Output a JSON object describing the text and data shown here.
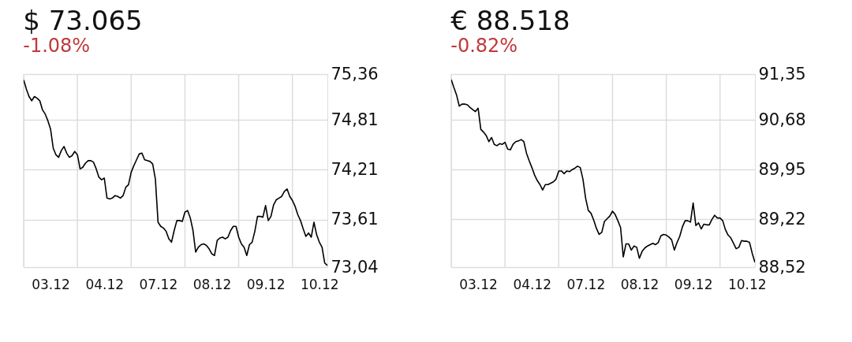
{
  "chart_data": [
    {
      "type": "line",
      "title": "$ 73.065",
      "subtitle": "-1.08%",
      "grid": true,
      "categories": [
        null,
        null,
        null,
        null,
        null,
        null,
        null,
        null,
        null,
        null,
        "03.12",
        null,
        null,
        null,
        null,
        null,
        null,
        null,
        null,
        null,
        null,
        null,
        null,
        null,
        null,
        null,
        null,
        null,
        null,
        null,
        "04.12",
        null,
        null,
        null,
        null,
        null,
        null,
        null,
        null,
        null,
        null,
        null,
        null,
        null,
        null,
        null,
        null,
        null,
        null,
        null,
        "07.12",
        null,
        null,
        null,
        null,
        null,
        null,
        null,
        null,
        null,
        null,
        null,
        null,
        null,
        null,
        null,
        null,
        null,
        null,
        null,
        "08.12",
        null,
        null,
        null,
        null,
        null,
        null,
        null,
        null,
        null,
        null,
        null,
        null,
        null,
        null,
        null,
        null,
        null,
        null,
        null,
        "09.12",
        null,
        null,
        null,
        null,
        null,
        null,
        null,
        null,
        null,
        null,
        null,
        null,
        null,
        null,
        null,
        null,
        null,
        null,
        null,
        "10.12",
        null,
        null,
        null
      ],
      "ylim": [
        73.04,
        75.36
      ],
      "yticks": [
        {
          "value": 75.36,
          "label": "75,36"
        },
        {
          "value": 74.81,
          "label": "74,81"
        },
        {
          "value": 74.21,
          "label": "74,21"
        },
        {
          "value": 73.61,
          "label": "73,61"
        },
        {
          "value": 73.04,
          "label": "73,04"
        }
      ],
      "series": [
        {
          "color": "#000000",
          "values": [
            75.29,
            75.18,
            75.09,
            75.04,
            75.09,
            75.07,
            75.04,
            74.93,
            74.88,
            74.8,
            74.7,
            74.47,
            74.39,
            74.36,
            74.44,
            74.49,
            74.41,
            74.36,
            74.38,
            74.43,
            74.39,
            74.22,
            74.24,
            74.29,
            74.32,
            74.32,
            74.3,
            74.22,
            74.12,
            74.09,
            74.11,
            73.87,
            73.86,
            73.87,
            73.9,
            73.89,
            73.87,
            73.9,
            74.0,
            74.03,
            74.18,
            74.26,
            74.33,
            74.4,
            74.41,
            74.33,
            74.32,
            74.31,
            74.28,
            74.1,
            73.58,
            73.53,
            73.51,
            73.47,
            73.38,
            73.34,
            73.48,
            73.6,
            73.6,
            73.59,
            73.7,
            73.72,
            73.63,
            73.48,
            73.22,
            73.28,
            73.31,
            73.32,
            73.3,
            73.26,
            73.2,
            73.18,
            73.36,
            73.39,
            73.4,
            73.38,
            73.4,
            73.48,
            73.53,
            73.53,
            73.4,
            73.32,
            73.28,
            73.18,
            73.31,
            73.34,
            73.47,
            73.65,
            73.65,
            73.64,
            73.78,
            73.6,
            73.65,
            73.79,
            73.85,
            73.87,
            73.89,
            73.95,
            73.98,
            73.89,
            73.84,
            73.77,
            73.67,
            73.6,
            73.5,
            73.41,
            73.45,
            73.4,
            73.58,
            73.43,
            73.34,
            73.28,
            73.09,
            73.06
          ]
        }
      ]
    },
    {
      "type": "line",
      "title": "€ 88.518",
      "subtitle": "-0.82%",
      "grid": true,
      "categories": [
        null,
        null,
        null,
        null,
        null,
        null,
        null,
        null,
        null,
        null,
        "03.12",
        null,
        null,
        null,
        null,
        null,
        null,
        null,
        null,
        null,
        null,
        null,
        null,
        null,
        null,
        null,
        null,
        null,
        null,
        null,
        "04.12",
        null,
        null,
        null,
        null,
        null,
        null,
        null,
        null,
        null,
        null,
        null,
        null,
        null,
        null,
        null,
        null,
        null,
        null,
        null,
        "07.12",
        null,
        null,
        null,
        null,
        null,
        null,
        null,
        null,
        null,
        null,
        null,
        null,
        null,
        null,
        null,
        null,
        null,
        null,
        null,
        "08.12",
        null,
        null,
        null,
        null,
        null,
        null,
        null,
        null,
        null,
        null,
        null,
        null,
        null,
        null,
        null,
        null,
        null,
        null,
        null,
        "09.12",
        null,
        null,
        null,
        null,
        null,
        null,
        null,
        null,
        null,
        null,
        null,
        null,
        null,
        null,
        null,
        null,
        null,
        null,
        null,
        "10.12",
        null,
        null,
        null
      ],
      "ylim": [
        88.52,
        91.35
      ],
      "yticks": [
        {
          "value": 91.35,
          "label": "91,35"
        },
        {
          "value": 90.68,
          "label": "90,68"
        },
        {
          "value": 89.95,
          "label": "89,95"
        },
        {
          "value": 89.22,
          "label": "89,22"
        },
        {
          "value": 88.52,
          "label": "88,52"
        }
      ],
      "series": [
        {
          "color": "#000000",
          "values": [
            91.27,
            91.15,
            91.04,
            90.88,
            90.91,
            90.91,
            90.9,
            90.86,
            90.83,
            90.8,
            90.85,
            90.54,
            90.5,
            90.45,
            90.36,
            90.42,
            90.32,
            90.3,
            90.33,
            90.32,
            90.35,
            90.25,
            90.24,
            90.32,
            90.36,
            90.37,
            90.39,
            90.36,
            90.19,
            90.08,
            89.98,
            89.87,
            89.79,
            89.73,
            89.65,
            89.73,
            89.73,
            89.75,
            89.77,
            89.81,
            89.93,
            89.93,
            89.89,
            89.93,
            89.92,
            89.95,
            89.97,
            90.0,
            89.98,
            89.81,
            89.53,
            89.35,
            89.31,
            89.21,
            89.09,
            89.0,
            89.03,
            89.19,
            89.23,
            89.27,
            89.34,
            89.29,
            89.2,
            89.1,
            88.67,
            88.86,
            88.86,
            88.77,
            88.83,
            88.81,
            88.65,
            88.75,
            88.8,
            88.83,
            88.85,
            88.87,
            88.85,
            88.88,
            88.98,
            89.0,
            88.99,
            88.96,
            88.92,
            88.77,
            88.88,
            88.97,
            89.11,
            89.2,
            89.2,
            89.18,
            89.46,
            89.13,
            89.17,
            89.08,
            89.15,
            89.14,
            89.14,
            89.22,
            89.28,
            89.24,
            89.24,
            89.2,
            89.07,
            88.99,
            88.95,
            88.87,
            88.79,
            88.81,
            88.91,
            88.9,
            88.9,
            88.88,
            88.72,
            88.59
          ]
        }
      ]
    }
  ]
}
